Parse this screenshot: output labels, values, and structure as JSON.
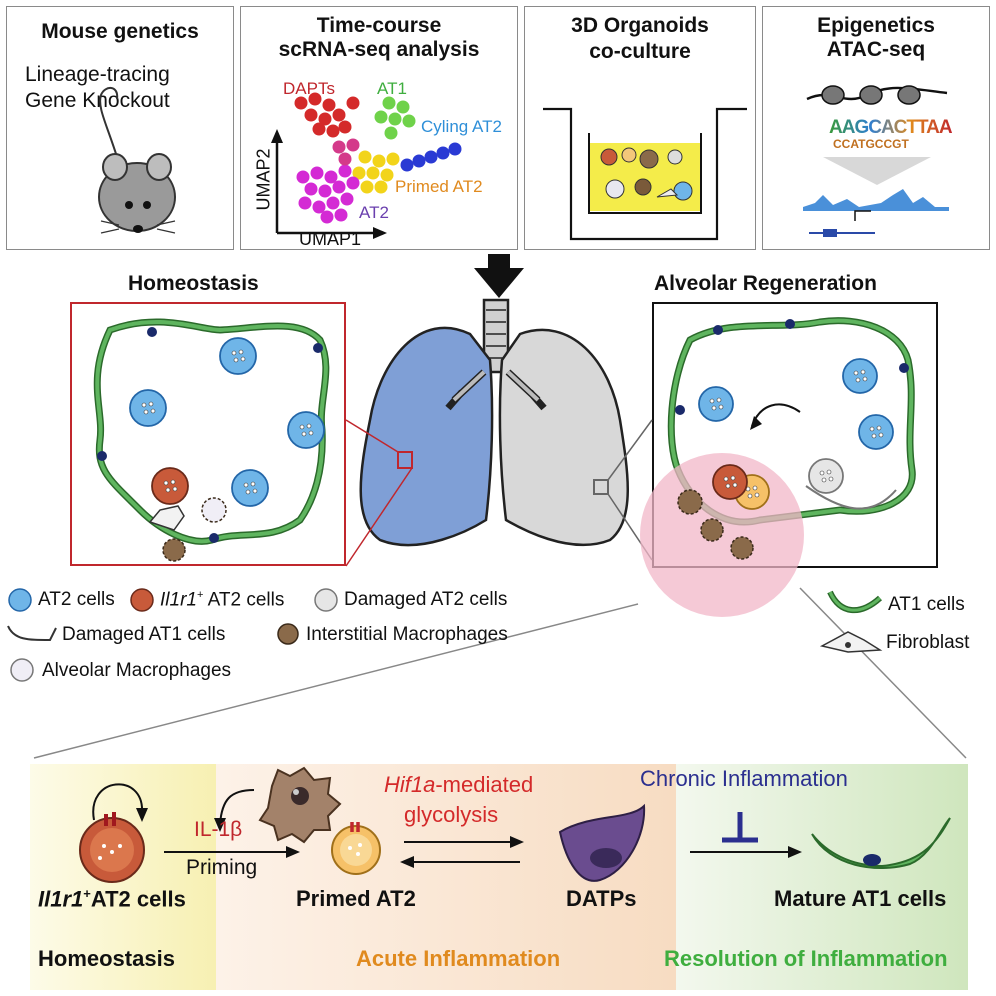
{
  "panels": {
    "mouse": {
      "title": "Mouse genetics",
      "line1": "Lineage-tracing",
      "line2": "Gene Knockout"
    },
    "scrna": {
      "title1": "Time-course",
      "title2": "scRNA-seq analysis",
      "clusters": {
        "dapts": "DAPTs",
        "at1": "AT1",
        "cycling": "Cyling AT2",
        "primed": "Primed AT2",
        "at2": "AT2"
      },
      "xaxis": "UMAP1",
      "yaxis": "UMAP2"
    },
    "organoid": {
      "title1": "3D Organoids",
      "title2": "co-culture"
    },
    "epigen": {
      "title1": "Epigenetics",
      "title2": "ATAC-seq",
      "motif_top": "AAGCACTTAA",
      "motif_bottom": "CCATGCCGT"
    }
  },
  "middle": {
    "homeostasis_title": "Homeostasis",
    "regeneration_title": "Alveolar Regeneration"
  },
  "legend": {
    "at2": "AT2 cells",
    "il1r1_gene": "Il1r1",
    "il1r1_sup": "+",
    "il1r1_rest": " AT2 cells",
    "damaged_at2": "Damaged AT2 cells",
    "damaged_at1": "Damaged AT1 cells",
    "interstitial": "Interstitial Macrophages",
    "alveolar": "Alveolar Macrophages",
    "at1": "AT1 cells",
    "fibroblast": "Fibroblast"
  },
  "pathway": {
    "il1b": "IL-1β",
    "priming": "Priming",
    "hif_gene": "Hif1a",
    "hif_rest": "-mediated",
    "glycolysis": "glycolysis",
    "chronic": "Chronic Inflammation",
    "il1r1_gene": "Il1r1",
    "il1r1_sup": "+",
    "il1r1_rest": "AT2 cells",
    "primed": "Primed AT2",
    "datps": "DATPs",
    "mature": "Mature AT1 cells"
  },
  "phases": {
    "homeostasis": "Homeostasis",
    "acute": "Acute Inflammation",
    "resolution": "Resolution of Inflammation"
  },
  "colors": {
    "at2_blue": "#2f8fd8",
    "lung_blue": "#7f9fd6",
    "frame_red": "#c0272d",
    "at1_green": "#3c9a3c",
    "acute_orange": "#e08a1e",
    "resolution_green": "#3fae3f",
    "chronic_navy": "#2b2f8f",
    "hif_red": "#d42a2a",
    "datp_purple": "#6a4c8f"
  },
  "icons": [
    "mouse-icon",
    "umap-scatter-icon",
    "transwell-icon",
    "nucleosome-icon",
    "lung-icon",
    "at2-cell-icon",
    "macrophage-icon",
    "inhibition-icon"
  ]
}
